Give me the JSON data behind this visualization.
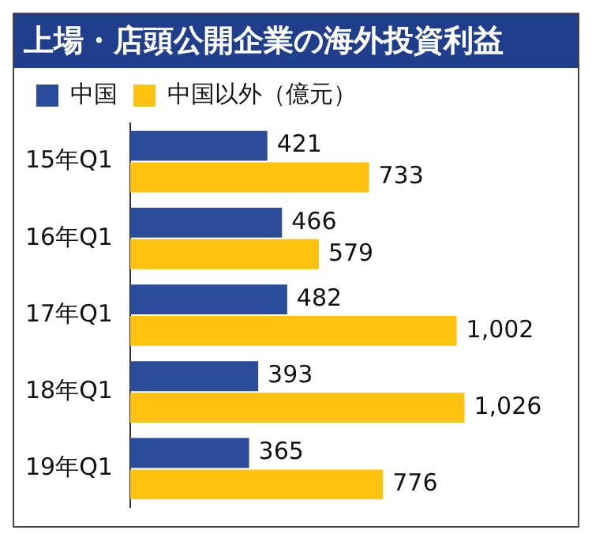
{
  "chart_data": {
    "type": "bar",
    "orientation": "horizontal",
    "title": "上場・店頭公開企業の海外投資利益",
    "categories": [
      "15年Q1",
      "16年Q1",
      "17年Q1",
      "18年Q1",
      "19年Q1"
    ],
    "series": [
      {
        "name": "中国",
        "color": "#2b4c9b",
        "values": [
          421,
          466,
          482,
          393,
          365
        ],
        "value_labels": [
          "421",
          "466",
          "482",
          "393",
          "365"
        ]
      },
      {
        "name": "中国以外（億元）",
        "color": "#ffc20e",
        "values": [
          733,
          579,
          1002,
          1026,
          776
        ],
        "value_labels": [
          "733",
          "579",
          "1,002",
          "1,026",
          "776"
        ]
      }
    ],
    "legend": "top left"
  }
}
